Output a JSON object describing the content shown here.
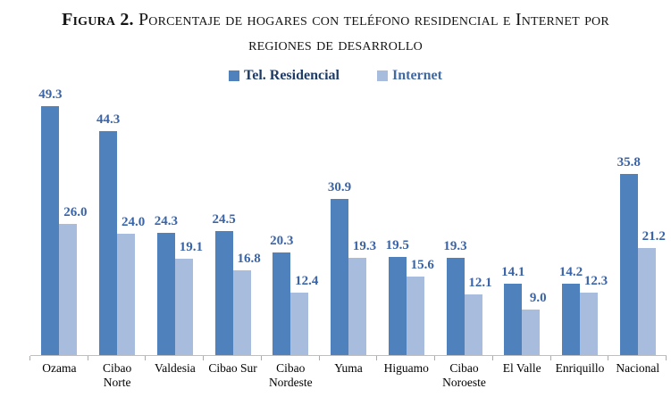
{
  "title": {
    "bold": "Figura 2.",
    "rest": " Porcentaje de hogares con teléfono residencial e Internet por",
    "line2": "regiones de desarrollo"
  },
  "legend": [
    {
      "label": "Tel. Residencial",
      "color": "#4f81bd",
      "text_color": "#1f3c66"
    },
    {
      "label": "Internet",
      "color": "#a8bcde",
      "text_color": "#44699f"
    }
  ],
  "chart_data": {
    "type": "bar",
    "title": "Figura 2. Porcentaje de hogares con teléfono residencial e Internet por regiones de desarrollo",
    "categories": [
      "Ozama",
      "Cibao Norte",
      "Valdesia",
      "Cibao Sur",
      "Cibao Nordeste",
      "Yuma",
      "Higuamo",
      "Cibao Noroeste",
      "El Valle",
      "Enriquillo",
      "Nacional"
    ],
    "series": [
      {
        "name": "Tel. Residencial",
        "color": "#4f81bd",
        "values": [
          49.3,
          44.3,
          24.3,
          24.5,
          20.3,
          30.9,
          19.5,
          19.3,
          14.1,
          14.2,
          35.8
        ]
      },
      {
        "name": "Internet",
        "color": "#a8bcde",
        "values": [
          26.0,
          24.0,
          19.1,
          16.8,
          12.4,
          19.3,
          15.6,
          12.1,
          9.0,
          12.3,
          21.2
        ]
      }
    ],
    "value_labels": true,
    "value_label_color": "#3a64a8",
    "xlabel": "",
    "ylabel": "",
    "ylim": [
      0,
      53
    ],
    "grid": false,
    "legend_position": "top",
    "axis_color": "#bfbfbf"
  }
}
